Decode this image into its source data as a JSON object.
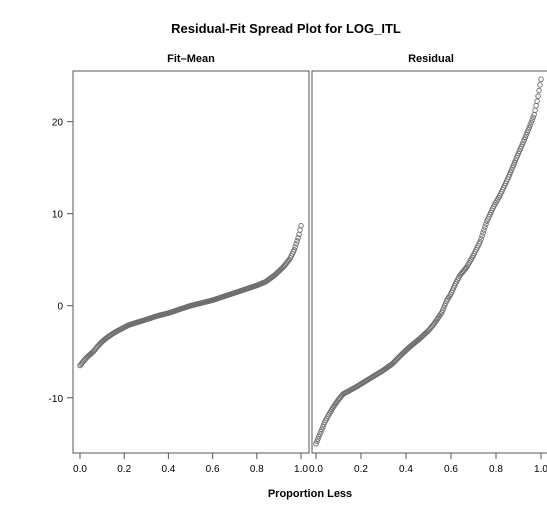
{
  "chart_data": {
    "type": "scatter",
    "title": "Residual-Fit Spread Plot for LOG_ITL",
    "xlabel": "Proportion Less",
    "ylabel": "",
    "xlim": [
      0.0,
      1.0
    ],
    "ylim": [
      -16,
      25.5
    ],
    "x_ticks": [
      0.0,
      0.2,
      0.4,
      0.6,
      0.8,
      1.0
    ],
    "x_tick_labels": [
      "0.0",
      "0.2",
      "0.4",
      "0.6",
      "0.8",
      "1.0"
    ],
    "y_ticks": [
      -10,
      0,
      10,
      20
    ],
    "y_tick_labels": [
      "-10",
      "0",
      "10",
      "20"
    ],
    "grid": false,
    "legend": "none",
    "marker": "open-circle",
    "marker_color": "#6e6e6e",
    "panels": [
      {
        "name": "Fit–Mean",
        "points": [
          [
            0.0,
            -6.5
          ],
          [
            0.02,
            -5.9
          ],
          [
            0.04,
            -5.4
          ],
          [
            0.06,
            -5.0
          ],
          [
            0.08,
            -4.4
          ],
          [
            0.1,
            -3.9
          ],
          [
            0.12,
            -3.5
          ],
          [
            0.15,
            -3.0
          ],
          [
            0.18,
            -2.6
          ],
          [
            0.22,
            -2.1
          ],
          [
            0.26,
            -1.8
          ],
          [
            0.3,
            -1.5
          ],
          [
            0.35,
            -1.1
          ],
          [
            0.4,
            -0.8
          ],
          [
            0.45,
            -0.4
          ],
          [
            0.5,
            0.0
          ],
          [
            0.55,
            0.3
          ],
          [
            0.6,
            0.6
          ],
          [
            0.65,
            1.0
          ],
          [
            0.7,
            1.4
          ],
          [
            0.75,
            1.8
          ],
          [
            0.8,
            2.2
          ],
          [
            0.84,
            2.6
          ],
          [
            0.88,
            3.3
          ],
          [
            0.92,
            4.2
          ],
          [
            0.95,
            5.1
          ],
          [
            0.97,
            6.1
          ],
          [
            0.99,
            7.6
          ],
          [
            1.0,
            8.7
          ]
        ]
      },
      {
        "name": "Residual",
        "points": [
          [
            0.0,
            -15.0
          ],
          [
            0.02,
            -13.8
          ],
          [
            0.04,
            -12.6
          ],
          [
            0.06,
            -11.7
          ],
          [
            0.08,
            -10.9
          ],
          [
            0.1,
            -10.2
          ],
          [
            0.12,
            -9.6
          ],
          [
            0.15,
            -9.2
          ],
          [
            0.18,
            -8.8
          ],
          [
            0.22,
            -8.2
          ],
          [
            0.26,
            -7.6
          ],
          [
            0.3,
            -7.0
          ],
          [
            0.34,
            -6.3
          ],
          [
            0.38,
            -5.3
          ],
          [
            0.42,
            -4.4
          ],
          [
            0.46,
            -3.6
          ],
          [
            0.5,
            -2.7
          ],
          [
            0.53,
            -1.8
          ],
          [
            0.56,
            -0.7
          ],
          [
            0.58,
            0.5
          ],
          [
            0.6,
            1.3
          ],
          [
            0.62,
            2.4
          ],
          [
            0.64,
            3.3
          ],
          [
            0.67,
            4.2
          ],
          [
            0.7,
            5.5
          ],
          [
            0.73,
            7.0
          ],
          [
            0.76,
            9.2
          ],
          [
            0.79,
            10.8
          ],
          [
            0.82,
            12.1
          ],
          [
            0.86,
            14.2
          ],
          [
            0.89,
            16.0
          ],
          [
            0.92,
            17.7
          ],
          [
            0.95,
            19.5
          ],
          [
            0.97,
            20.8
          ],
          [
            0.985,
            22.5
          ],
          [
            1.0,
            24.6
          ]
        ]
      }
    ]
  }
}
